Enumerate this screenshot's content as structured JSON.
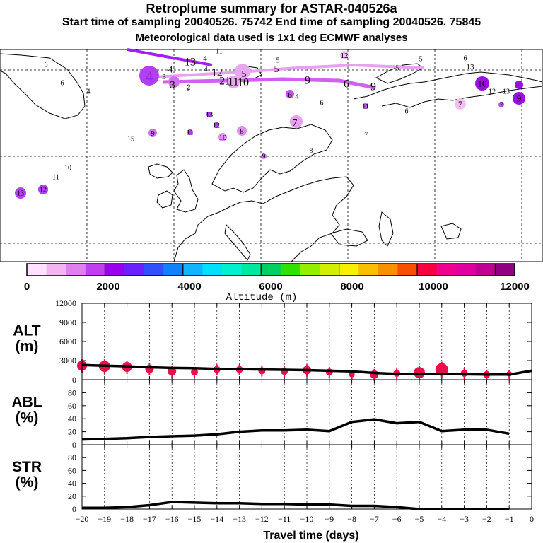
{
  "titles": {
    "line1": "Retroplume summary for ASTAR-040526a",
    "line2": "Start time of sampling 20040526. 75742     End time of sampling 20040526. 75845",
    "line3": "Meteorological data used is 1x1 deg ECMWF analyses"
  },
  "colors": {
    "colorbar": [
      "#ffe0ff",
      "#f4b4f4",
      "#e080f0",
      "#c040f0",
      "#9a00f0",
      "#6a20ff",
      "#3050ff",
      "#1080ff",
      "#10b4ff",
      "#00e0ff",
      "#00f0d0",
      "#00e8a0",
      "#00d060",
      "#30e000",
      "#90f000",
      "#d0f000",
      "#f8f000",
      "#f8c000",
      "#f89000",
      "#f85000",
      "#f80040",
      "#f00090",
      "#e000a0",
      "#c00090",
      "#900080"
    ],
    "marker": "#e8104a",
    "coast": "#000000"
  },
  "map": {
    "colorbar_ticks": [
      "0",
      "2000",
      "4000",
      "6000",
      "8000",
      "10000",
      "12000"
    ],
    "colorbar_label": "Altitude (m)",
    "labels": [
      {
        "t": "4",
        "s": 22
      },
      {
        "t": "3",
        "s": 11
      },
      {
        "t": "4",
        "s": 13
      },
      {
        "t": "3",
        "s": 15
      },
      {
        "t": "2",
        "s": 10
      },
      {
        "t": "13",
        "s": 16
      },
      {
        "t": "4",
        "s": 11
      },
      {
        "t": "11",
        "s": 10
      },
      {
        "t": "4",
        "s": 11
      },
      {
        "t": "12",
        "s": 11
      },
      {
        "t": "5",
        "s": 10
      },
      {
        "t": "6",
        "s": 10
      },
      {
        "t": "13",
        "s": 11
      },
      {
        "t": "12",
        "s": 16
      },
      {
        "t": "5",
        "s": 14
      },
      {
        "t": "5",
        "s": 14
      },
      {
        "t": "5",
        "s": 10
      },
      {
        "t": "9",
        "s": 16
      },
      {
        "t": "6",
        "s": 16
      },
      {
        "t": "9",
        "s": 16
      },
      {
        "t": "21",
        "s": 16
      },
      {
        "t": "11",
        "s": 16
      },
      {
        "t": "10",
        "s": 16
      },
      {
        "t": "10",
        "s": 13
      },
      {
        "t": "12",
        "s": 10
      },
      {
        "t": "13",
        "s": 10
      },
      {
        "t": "9",
        "s": 13
      },
      {
        "t": "7",
        "s": 12
      },
      {
        "t": "6",
        "s": 11
      },
      {
        "t": "4",
        "s": 11
      },
      {
        "t": "6",
        "s": 10
      },
      {
        "t": "11",
        "s": 10
      },
      {
        "t": "6",
        "s": 10
      },
      {
        "t": "7",
        "s": 10
      },
      {
        "t": "13",
        "s": 10
      },
      {
        "t": "12",
        "s": 10
      },
      {
        "t": "11",
        "s": 10
      },
      {
        "t": "10",
        "s": 11
      },
      {
        "t": "8",
        "s": 11
      },
      {
        "t": "7",
        "s": 14
      },
      {
        "t": "7",
        "s": 9
      },
      {
        "t": "8",
        "s": 9
      },
      {
        "t": "9",
        "s": 9
      },
      {
        "t": "15",
        "s": 10
      },
      {
        "t": "9",
        "s": 11
      },
      {
        "t": "10",
        "s": 10
      },
      {
        "t": "11",
        "s": 10
      },
      {
        "t": "12",
        "s": 10
      },
      {
        "t": "13",
        "s": 10
      },
      {
        "t": "6",
        "s": 10
      },
      {
        "t": "4",
        "s": 10
      },
      {
        "t": "6",
        "s": 10
      },
      {
        "t": "2",
        "s": 10
      },
      {
        "t": "5",
        "s": 10
      }
    ]
  },
  "chart_data": [
    {
      "type": "line",
      "name": "ALT",
      "ylabel": "ALT (m)",
      "ylabel_line1": "ALT",
      "ylabel_line2": "(m)",
      "ylim": [
        0,
        12000
      ],
      "yticks": [
        "0",
        "3000",
        "6000",
        "9000",
        "12000"
      ],
      "x": [
        -20,
        -19,
        -18,
        -17,
        -16,
        -15,
        -14,
        -13,
        -12,
        -11,
        -10,
        -9,
        -8,
        -7,
        -6,
        -5,
        -4,
        -3,
        -2,
        -1,
        0
      ],
      "line_x": [
        -20,
        -19,
        -18,
        -17,
        -16,
        -15,
        -14,
        -13,
        -12,
        -11,
        -10,
        -9,
        -8,
        -7,
        -6,
        -5,
        -4,
        -3,
        -2,
        -1,
        0
      ],
      "line_y": [
        2300,
        2200,
        2100,
        1950,
        1850,
        1800,
        1700,
        1650,
        1600,
        1550,
        1500,
        1400,
        1300,
        1050,
        900,
        900,
        900,
        850,
        800,
        800,
        1400
      ],
      "markers": [
        {
          "x": -20,
          "y": 2200,
          "r": 7
        },
        {
          "x": -19,
          "y": 2100,
          "r": 8
        },
        {
          "x": -18,
          "y": 2000,
          "r": 7
        },
        {
          "x": -17,
          "y": 1700,
          "r": 6
        },
        {
          "x": -16,
          "y": 1300,
          "r": 6
        },
        {
          "x": -15,
          "y": 1200,
          "r": 5
        },
        {
          "x": -14,
          "y": 1600,
          "r": 5
        },
        {
          "x": -13,
          "y": 1600,
          "r": 5
        },
        {
          "x": -12,
          "y": 1400,
          "r": 5
        },
        {
          "x": -11,
          "y": 1300,
          "r": 5
        },
        {
          "x": -10,
          "y": 1500,
          "r": 6
        },
        {
          "x": -9,
          "y": 1200,
          "r": 5
        },
        {
          "x": -8,
          "y": 800,
          "r": 4
        },
        {
          "x": -7,
          "y": 800,
          "r": 6
        },
        {
          "x": -6,
          "y": 1000,
          "r": 5
        },
        {
          "x": -5,
          "y": 1100,
          "r": 8
        },
        {
          "x": -4,
          "y": 1600,
          "r": 9
        },
        {
          "x": -3,
          "y": 1000,
          "r": 5
        },
        {
          "x": -2,
          "y": 800,
          "r": 5
        },
        {
          "x": -1,
          "y": 900,
          "r": 4
        }
      ]
    },
    {
      "type": "line",
      "name": "ABL",
      "ylabel": "ABL (%)",
      "ylabel_line1": "ABL",
      "ylabel_line2": "(%)",
      "ylim": [
        0,
        100
      ],
      "yticks": [
        "0",
        "20",
        "40",
        "60",
        "80"
      ],
      "x": [
        -20,
        -19,
        -18,
        -17,
        -16,
        -15,
        -14,
        -13,
        -12,
        -11,
        -10,
        -9,
        -8,
        -7,
        -6,
        -5,
        -4,
        -3,
        -2,
        -1
      ],
      "y": [
        8,
        9,
        10,
        12,
        13,
        14,
        16,
        20,
        22,
        22,
        23,
        21,
        35,
        39,
        33,
        35,
        21,
        23,
        23,
        17
      ]
    },
    {
      "type": "line",
      "name": "STR",
      "ylabel": "STR (%)",
      "ylabel_line1": "STR",
      "ylabel_line2": "(%)",
      "xlabel": "Travel time (days)",
      "ylim": [
        0,
        100
      ],
      "yticks": [
        "0",
        "20",
        "40",
        "60",
        "80"
      ],
      "xticks": [
        "−20",
        "−19",
        "−18",
        "−17",
        "−16",
        "−15",
        "−14",
        "−13",
        "−12",
        "−11",
        "−10",
        "−9",
        "−8",
        "−7",
        "−6",
        "−5",
        "−4",
        "−3",
        "−2",
        "−1",
        "0"
      ],
      "x": [
        -20,
        -19,
        -18,
        -17,
        -16,
        -15,
        -14,
        -13,
        -12,
        -11,
        -10,
        -9,
        -8,
        -7,
        -6,
        -5,
        -4,
        -3,
        -2,
        -1
      ],
      "y": [
        2,
        2,
        3,
        6,
        11,
        10,
        9,
        9,
        8,
        8,
        7,
        7,
        5,
        5,
        3,
        0,
        0,
        0,
        0,
        0
      ]
    }
  ]
}
